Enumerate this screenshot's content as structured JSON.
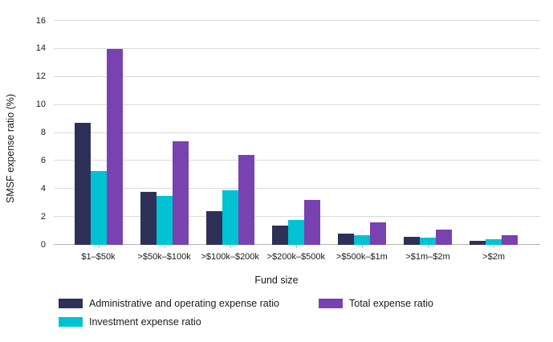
{
  "chart_data": {
    "type": "bar",
    "title": "",
    "categories": [
      "$1–$50k",
      ">$50k–$100k",
      ">$100k–$200k",
      ">$200k–$500k",
      ">$500k–$1m",
      ">$1m–$2m",
      ">$2m"
    ],
    "series": [
      {
        "name": "Administrative and operating expense ratio",
        "color": "#2e3157",
        "values": [
          8.7,
          3.8,
          2.4,
          1.4,
          0.8,
          0.6,
          0.3
        ]
      },
      {
        "name": "Investment expense ratio",
        "color": "#00c2d3",
        "values": [
          5.3,
          3.5,
          3.9,
          1.8,
          0.7,
          0.5,
          0.4
        ]
      },
      {
        "name": "Total expense ratio",
        "color": "#7842b1",
        "values": [
          14.0,
          7.4,
          6.4,
          3.2,
          1.6,
          1.1,
          0.7
        ]
      }
    ],
    "xlabel": "Fund size",
    "ylabel": "SMSF expense ratio (%)",
    "ylim": [
      0,
      16
    ],
    "ytick_step": 2,
    "yticks": [
      0,
      2,
      4,
      6,
      8,
      10,
      12,
      14,
      16
    ],
    "grid": "horizontal",
    "legend_position": "bottom"
  },
  "colors": {
    "background": "#ffffff",
    "gridline": "#dadada",
    "axis_line": "#b3b3b3",
    "text": "#1a1a1a"
  }
}
